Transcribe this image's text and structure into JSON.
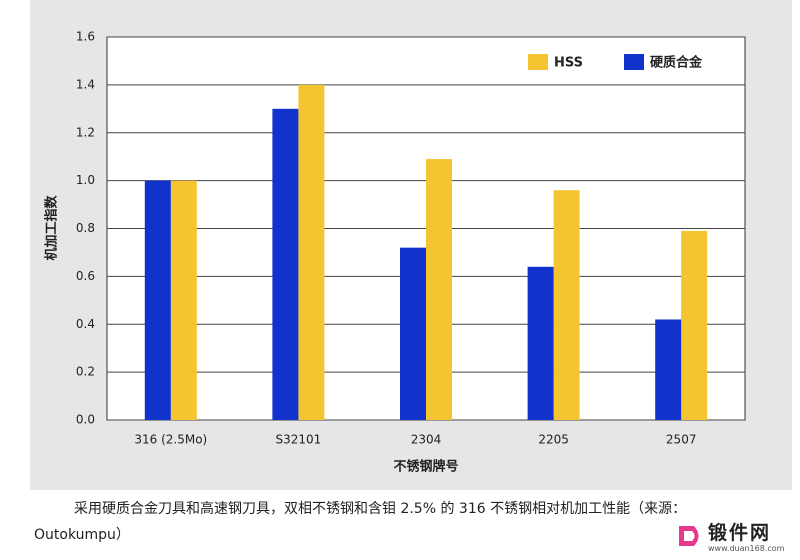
{
  "chart_data": {
    "type": "bar",
    "y_label": "机加工指数",
    "x_label": "不锈钢牌号",
    "categories": [
      "316 (2.5Mo)",
      "S32101",
      "2304",
      "2205",
      "2507"
    ],
    "series": [
      {
        "name": "HSS",
        "color": "#f5c431",
        "values": [
          1.0,
          1.4,
          1.09,
          0.96,
          0.79
        ]
      },
      {
        "name": "硬质合金",
        "color": "#1133cc",
        "values": [
          1.0,
          1.3,
          0.72,
          0.64,
          0.42
        ]
      }
    ],
    "ylim": [
      0,
      1.6
    ],
    "yticks": [
      {
        "value": 0,
        "label": "0.0"
      },
      0.2,
      0.4,
      0.6,
      0.8,
      {
        "value": 1,
        "label": "1.0"
      },
      1.2,
      1.4,
      1.6
    ],
    "grid": true,
    "legend": "top-right"
  },
  "caption": "采用硬质合金刀具和高速钢刀具，双相不锈钢和含钼 2.5% 的 316 不锈钢相对机加工性能（来源：Outokumpu）",
  "watermark": {
    "name": "锻件网",
    "url": "www.duan168.com"
  }
}
